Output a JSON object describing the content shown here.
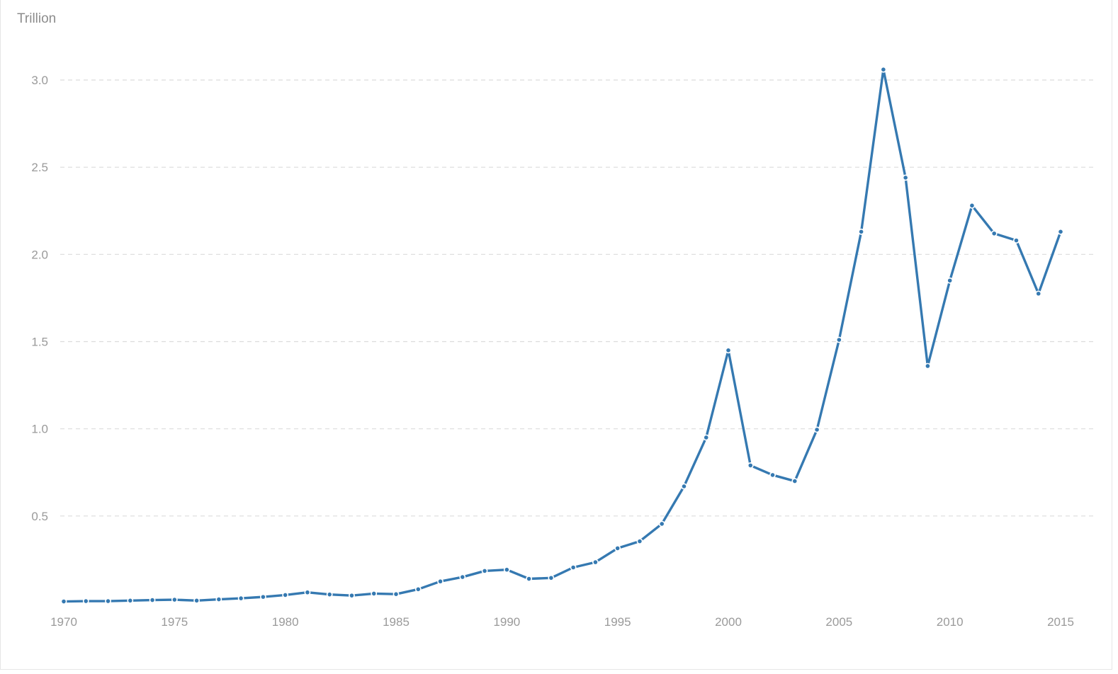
{
  "chart_data": {
    "type": "line",
    "unit_label": "Trillion",
    "x": [
      1970,
      1971,
      1972,
      1973,
      1974,
      1975,
      1976,
      1977,
      1978,
      1979,
      1980,
      1981,
      1982,
      1983,
      1984,
      1985,
      1986,
      1987,
      1988,
      1989,
      1990,
      1991,
      1992,
      1993,
      1994,
      1995,
      1996,
      1997,
      1998,
      1999,
      2000,
      2001,
      2002,
      2003,
      2004,
      2005,
      2006,
      2007,
      2008,
      2009,
      2010,
      2011,
      2012,
      2013,
      2014,
      2015
    ],
    "series": [
      {
        "values": [
          0.01,
          0.012,
          0.012,
          0.015,
          0.018,
          0.02,
          0.015,
          0.022,
          0.028,
          0.036,
          0.047,
          0.062,
          0.05,
          0.044,
          0.055,
          0.052,
          0.08,
          0.125,
          0.15,
          0.185,
          0.192,
          0.14,
          0.145,
          0.205,
          0.235,
          0.315,
          0.355,
          0.455,
          0.67,
          0.95,
          1.45,
          0.79,
          0.735,
          0.7,
          0.995,
          1.51,
          2.13,
          3.06,
          2.44,
          1.36,
          1.85,
          2.28,
          2.12,
          2.08,
          1.775,
          2.13
        ]
      }
    ],
    "x_ticks": [
      "1970",
      "1975",
      "1980",
      "1985",
      "1990",
      "1995",
      "2000",
      "2005",
      "2010",
      "2015"
    ],
    "y_ticks": [
      "0.5",
      "1.0",
      "1.5",
      "2.0",
      "2.5",
      "3.0"
    ],
    "y_tick_values": [
      0.5,
      1.0,
      1.5,
      2.0,
      2.5,
      3.0
    ],
    "x_tick_values": [
      1970,
      1975,
      1980,
      1985,
      1990,
      1995,
      2000,
      2005,
      2010,
      2015
    ],
    "ylim": [
      0,
      3.0
    ],
    "xlim": [
      1970,
      2015
    ],
    "grid": "horizontal-dashed",
    "color": "#3579b1"
  }
}
